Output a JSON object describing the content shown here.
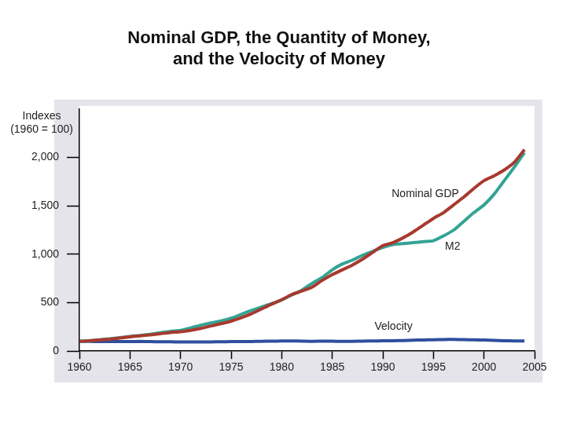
{
  "chart_data": {
    "type": "line",
    "title": [
      "Nominal GDP, the Quantity of Money,",
      "and the Velocity of Money"
    ],
    "y_label": [
      "Indexes",
      "(1960 = 100)"
    ],
    "x": [
      1960,
      1961,
      1962,
      1963,
      1964,
      1965,
      1966,
      1967,
      1968,
      1969,
      1970,
      1971,
      1972,
      1973,
      1974,
      1975,
      1976,
      1977,
      1978,
      1979,
      1980,
      1981,
      1982,
      1983,
      1984,
      1985,
      1986,
      1987,
      1988,
      1989,
      1990,
      1991,
      1992,
      1993,
      1994,
      1995,
      1996,
      1997,
      1998,
      1999,
      2000,
      2001,
      2002,
      2003,
      2004
    ],
    "series": [
      {
        "name": "Nominal GDP",
        "color": "#a8392e",
        "values": [
          100,
          108,
          116,
          124,
          135,
          148,
          158,
          168,
          180,
          192,
          200,
          215,
          235,
          260,
          283,
          310,
          345,
          385,
          435,
          485,
          530,
          585,
          620,
          660,
          730,
          790,
          840,
          890,
          950,
          1020,
          1090,
          1120,
          1170,
          1230,
          1300,
          1370,
          1430,
          1510,
          1590,
          1680,
          1760,
          1810,
          1870,
          1950,
          2080
        ]
      },
      {
        "name": "M2",
        "color": "#33a394",
        "values": [
          100,
          108,
          118,
          128,
          140,
          152,
          162,
          175,
          190,
          205,
          215,
          240,
          268,
          292,
          312,
          340,
          380,
          420,
          455,
          490,
          530,
          580,
          630,
          700,
          760,
          840,
          900,
          940,
          990,
          1030,
          1070,
          1100,
          1110,
          1120,
          1130,
          1140,
          1190,
          1250,
          1340,
          1430,
          1510,
          1620,
          1760,
          1900,
          2050
        ]
      },
      {
        "name": "Velocity",
        "color": "#2f4f9e",
        "values": [
          100,
          100,
          99,
          98,
          98,
          99,
          100,
          98,
          97,
          96,
          95,
          95,
          94,
          95,
          97,
          98,
          98,
          99,
          101,
          103,
          104,
          105,
          103,
          101,
          103,
          103,
          100,
          101,
          103,
          105,
          106,
          108,
          110,
          113,
          116,
          118,
          120,
          121,
          119,
          117,
          115,
          112,
          108,
          105,
          104
        ]
      }
    ],
    "xlim": [
      1960,
      2005
    ],
    "xticks": [
      1960,
      1965,
      1970,
      1975,
      1980,
      1985,
      1990,
      1995,
      2000,
      2005
    ],
    "ylim": [
      0,
      2500
    ],
    "yticks": [
      0,
      500,
      {
        "value": 1000,
        "label": "1,000"
      },
      {
        "value": 1500,
        "label": "1,500"
      },
      {
        "value": 2000,
        "label": "2,000"
      }
    ],
    "grid": false,
    "legend": "none"
  }
}
